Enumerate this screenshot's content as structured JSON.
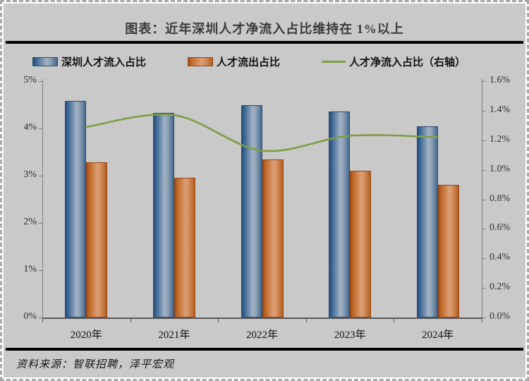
{
  "header": {
    "title": "图表：近年深圳人才净流入占比维持在 1%以上"
  },
  "footer": {
    "source": "资料来源：智联招聘，泽平宏观"
  },
  "colors": {
    "canvas_background": "#c9c9c9",
    "divider": "#000000",
    "title_text": "#3d3a39",
    "bar_inflow": "#36618e",
    "bar_outflow": "#c1672c",
    "line_net": "#7f9d45",
    "axis_line": "#7f7f7f"
  },
  "chart_data": {
    "type": "bar",
    "subtype": "grouped-bars-with-line",
    "title": "图表：近年深圳人才净流入占比维持在 1%以上",
    "categories": [
      "2020年",
      "2021年",
      "2022年",
      "2023年",
      "2024年"
    ],
    "series": [
      {
        "name": "深圳人才流入占比",
        "type": "bar",
        "axis": "left",
        "color": "#36618e",
        "values": [
          4.58,
          4.33,
          4.49,
          4.36,
          4.04
        ]
      },
      {
        "name": "人才流出占比",
        "type": "bar",
        "axis": "left",
        "color": "#c1672c",
        "values": [
          3.29,
          2.95,
          3.35,
          3.11,
          2.8
        ]
      },
      {
        "name": "人才净流入占比（右轴）",
        "type": "line",
        "axis": "right",
        "color": "#7f9d45",
        "values": [
          1.29,
          1.37,
          1.13,
          1.23,
          1.22
        ]
      }
    ],
    "left_axis": {
      "min": 0,
      "max": 5,
      "step": 1,
      "tick_labels": [
        "5%",
        "4%",
        "3%",
        "2%",
        "1%",
        "0%"
      ]
    },
    "right_axis": {
      "min": 0.0,
      "max": 1.6,
      "step": 0.2,
      "tick_labels": [
        "1.6%",
        "1.4%",
        "1.2%",
        "1.0%",
        "0.8%",
        "0.6%",
        "0.4%",
        "0.2%",
        "0.0%"
      ]
    },
    "legend_position": "top-left",
    "grid": false,
    "line_smoothed": true
  }
}
